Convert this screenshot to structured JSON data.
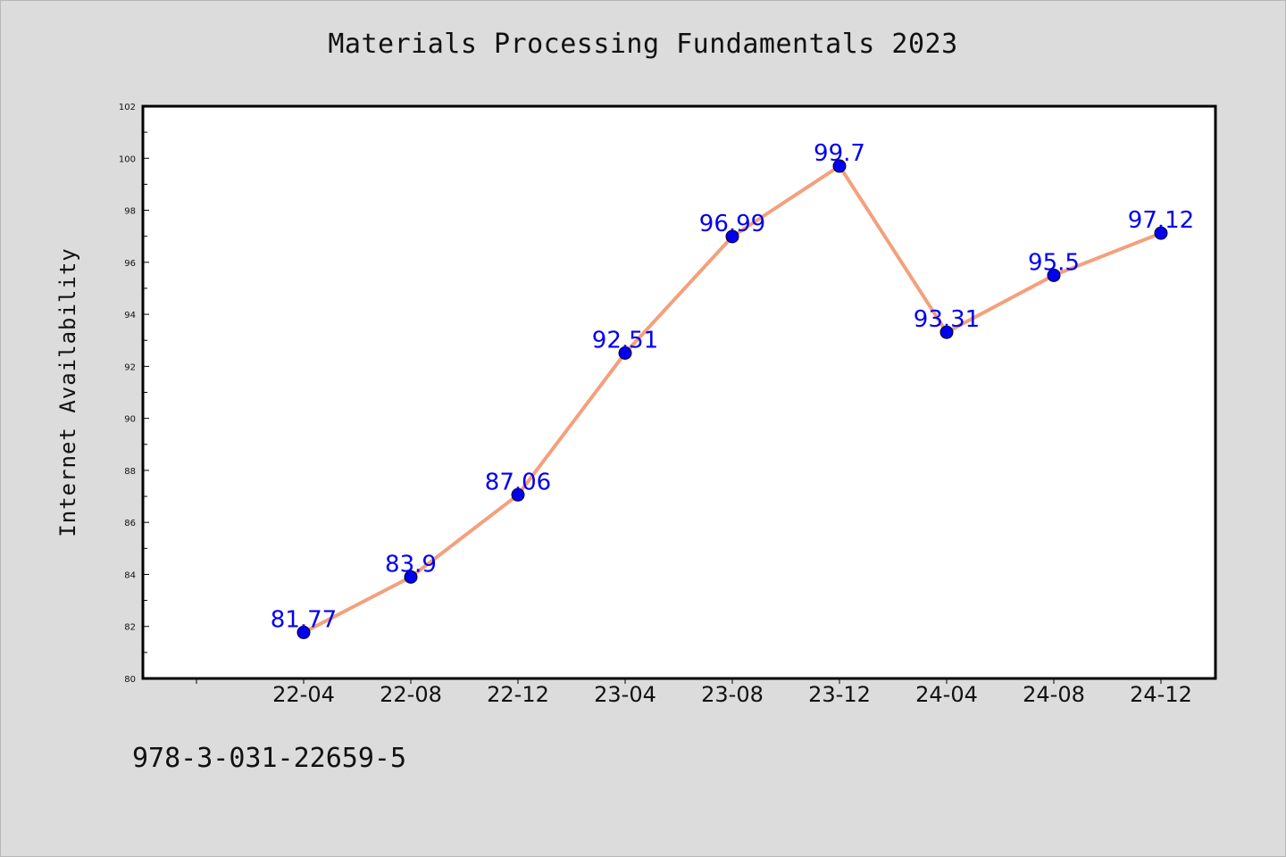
{
  "chart_data": {
    "type": "line",
    "title": "Materials Processing Fundamentals 2023",
    "xlabel": "",
    "ylabel": "Internet Availability",
    "categories": [
      "22-04",
      "22-08",
      "22-12",
      "23-04",
      "23-08",
      "23-12",
      "24-04",
      "24-08",
      "24-12"
    ],
    "values": [
      81.77,
      83.9,
      87.06,
      92.51,
      96.99,
      99.7,
      93.31,
      95.5,
      97.12
    ],
    "data_labels": [
      "81.77",
      "83.9",
      "87.06",
      "92.51",
      "96.99",
      "99.7",
      "93.31",
      "95.5",
      "97.12"
    ],
    "ylim": [
      80,
      102
    ],
    "yticks": [
      80,
      82,
      84,
      86,
      88,
      90,
      92,
      94,
      96,
      98,
      100,
      102
    ],
    "grid": false,
    "legend": "none",
    "colors": {
      "line": "#f4a07c",
      "marker": "#0000ee",
      "label": "#0000ee",
      "axis": "#000000",
      "plot_bg": "#ffffff"
    }
  },
  "footer": {
    "isbn": "978-3-031-22659-5"
  }
}
